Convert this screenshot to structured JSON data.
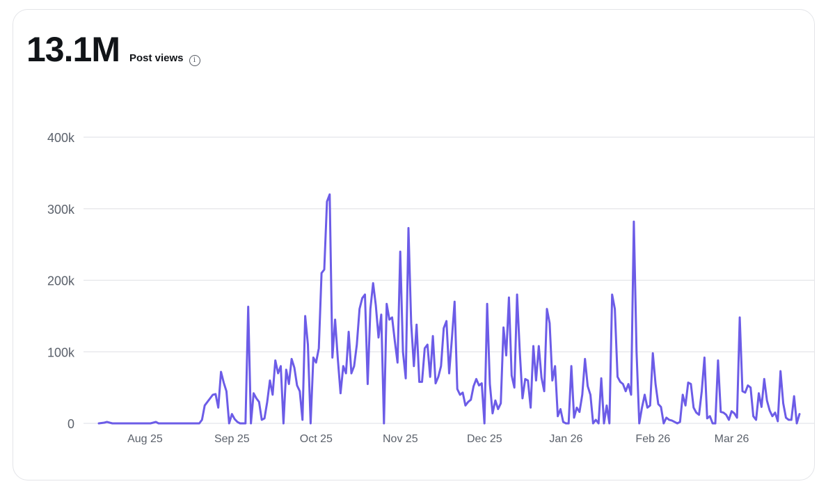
{
  "header": {
    "total": "13.1M",
    "metric_label": "Post views",
    "info_glyph": "i"
  },
  "chart_data": {
    "type": "line",
    "title": "Post views",
    "xlabel": "",
    "ylabel": "",
    "ylim": [
      0,
      400000
    ],
    "yticks": [
      {
        "value": 0,
        "label": "0"
      },
      {
        "value": 100000,
        "label": "100k"
      },
      {
        "value": 200000,
        "label": "200k"
      },
      {
        "value": 300000,
        "label": "300k"
      },
      {
        "value": 400000,
        "label": "400k"
      }
    ],
    "xlim": [
      0,
      250
    ],
    "xticks": [
      {
        "value": 16,
        "label": "Aug 25"
      },
      {
        "value": 48,
        "label": "Sep 25"
      },
      {
        "value": 79,
        "label": "Oct 25"
      },
      {
        "value": 110,
        "label": "Nov 25"
      },
      {
        "value": 141,
        "label": "Dec 25"
      },
      {
        "value": 171,
        "label": "Jan 26"
      },
      {
        "value": 203,
        "label": "Feb 26"
      },
      {
        "value": 232,
        "label": "Mar 26"
      }
    ],
    "grid": true,
    "line_color": "#6c5ce7",
    "series": [
      {
        "name": "Post views",
        "points": [
          [
            0,
            0
          ],
          [
            2,
            1000
          ],
          [
            3,
            2000
          ],
          [
            4,
            1000
          ],
          [
            5,
            0
          ],
          [
            8,
            0
          ],
          [
            11,
            0
          ],
          [
            14,
            0
          ],
          [
            17,
            0
          ],
          [
            19,
            0
          ],
          [
            20,
            1000
          ],
          [
            21,
            2000
          ],
          [
            22,
            0
          ],
          [
            25,
            0
          ],
          [
            28,
            0
          ],
          [
            31,
            0
          ],
          [
            34,
            0
          ],
          [
            37,
            0
          ],
          [
            38,
            5000
          ],
          [
            39,
            25000
          ],
          [
            41,
            35000
          ],
          [
            42,
            40000
          ],
          [
            43,
            41000
          ],
          [
            44,
            22000
          ],
          [
            45,
            72000
          ],
          [
            46,
            57000
          ],
          [
            47,
            45000
          ],
          [
            48,
            0
          ],
          [
            49,
            13000
          ],
          [
            50,
            6000
          ],
          [
            51,
            2000
          ],
          [
            52,
            0
          ],
          [
            53,
            0
          ],
          [
            54,
            0
          ],
          [
            55,
            163000
          ],
          [
            56,
            0
          ],
          [
            57,
            42000
          ],
          [
            58,
            35000
          ],
          [
            59,
            30000
          ],
          [
            60,
            5000
          ],
          [
            61,
            7000
          ],
          [
            62,
            30000
          ],
          [
            63,
            60000
          ],
          [
            64,
            40000
          ],
          [
            65,
            88000
          ],
          [
            66,
            70000
          ],
          [
            67,
            80000
          ],
          [
            68,
            0
          ],
          [
            69,
            75000
          ],
          [
            70,
            55000
          ],
          [
            71,
            90000
          ],
          [
            72,
            78000
          ],
          [
            73,
            53000
          ],
          [
            74,
            45000
          ],
          [
            75,
            5000
          ],
          [
            76,
            150000
          ],
          [
            77,
            110000
          ],
          [
            78,
            0
          ],
          [
            79,
            92000
          ],
          [
            80,
            85000
          ],
          [
            81,
            105000
          ],
          [
            82,
            210000
          ],
          [
            83,
            215000
          ],
          [
            84,
            310000
          ],
          [
            85,
            320000
          ],
          [
            86,
            92000
          ],
          [
            87,
            145000
          ],
          [
            88,
            90000
          ],
          [
            89,
            42000
          ],
          [
            90,
            80000
          ],
          [
            91,
            70000
          ],
          [
            92,
            128000
          ],
          [
            93,
            70000
          ],
          [
            94,
            80000
          ],
          [
            95,
            110000
          ],
          [
            96,
            160000
          ],
          [
            97,
            175000
          ],
          [
            98,
            180000
          ],
          [
            99,
            55000
          ],
          [
            100,
            160000
          ],
          [
            101,
            196000
          ],
          [
            102,
            165000
          ],
          [
            103,
            120000
          ],
          [
            104,
            152000
          ],
          [
            105,
            0
          ],
          [
            106,
            167000
          ],
          [
            107,
            145000
          ],
          [
            108,
            148000
          ],
          [
            109,
            115000
          ],
          [
            110,
            85000
          ],
          [
            111,
            240000
          ],
          [
            112,
            100000
          ],
          [
            113,
            63000
          ],
          [
            114,
            273000
          ],
          [
            115,
            140000
          ],
          [
            116,
            80000
          ],
          [
            117,
            138000
          ],
          [
            118,
            58000
          ],
          [
            119,
            58000
          ],
          [
            120,
            105000
          ],
          [
            121,
            110000
          ],
          [
            122,
            65000
          ],
          [
            123,
            122000
          ],
          [
            124,
            56000
          ],
          [
            125,
            65000
          ],
          [
            126,
            80000
          ],
          [
            127,
            133000
          ],
          [
            128,
            143000
          ],
          [
            129,
            70000
          ],
          [
            130,
            118000
          ],
          [
            131,
            170000
          ],
          [
            132,
            48000
          ],
          [
            133,
            40000
          ],
          [
            134,
            43000
          ],
          [
            135,
            25000
          ],
          [
            136,
            30000
          ],
          [
            137,
            33000
          ],
          [
            138,
            52000
          ],
          [
            139,
            62000
          ],
          [
            140,
            53000
          ],
          [
            141,
            56000
          ],
          [
            142,
            0
          ],
          [
            143,
            167000
          ],
          [
            144,
            55000
          ],
          [
            145,
            14000
          ],
          [
            146,
            32000
          ],
          [
            147,
            20000
          ],
          [
            148,
            28000
          ],
          [
            149,
            134000
          ],
          [
            150,
            95000
          ],
          [
            151,
            176000
          ],
          [
            152,
            67000
          ],
          [
            153,
            50000
          ],
          [
            154,
            180000
          ],
          [
            155,
            100000
          ],
          [
            156,
            35000
          ],
          [
            157,
            62000
          ],
          [
            158,
            60000
          ],
          [
            159,
            22000
          ],
          [
            160,
            108000
          ],
          [
            161,
            60000
          ],
          [
            162,
            108000
          ],
          [
            163,
            64000
          ],
          [
            164,
            45000
          ],
          [
            165,
            160000
          ],
          [
            166,
            140000
          ],
          [
            167,
            60000
          ],
          [
            168,
            80000
          ],
          [
            169,
            10000
          ],
          [
            170,
            20000
          ],
          [
            171,
            2000
          ],
          [
            172,
            0
          ],
          [
            173,
            0
          ],
          [
            174,
            80000
          ],
          [
            175,
            8000
          ],
          [
            176,
            22000
          ],
          [
            177,
            16000
          ],
          [
            178,
            40000
          ],
          [
            179,
            90000
          ],
          [
            180,
            52000
          ],
          [
            181,
            40000
          ],
          [
            182,
            0
          ],
          [
            183,
            5000
          ],
          [
            184,
            0
          ],
          [
            185,
            63000
          ],
          [
            186,
            0
          ],
          [
            187,
            25000
          ],
          [
            188,
            0
          ],
          [
            189,
            180000
          ],
          [
            190,
            160000
          ],
          [
            191,
            65000
          ],
          [
            192,
            58000
          ],
          [
            193,
            55000
          ],
          [
            194,
            45000
          ],
          [
            195,
            55000
          ],
          [
            196,
            40000
          ],
          [
            197,
            282000
          ],
          [
            198,
            100000
          ],
          [
            199,
            0
          ],
          [
            200,
            22000
          ],
          [
            201,
            40000
          ],
          [
            202,
            22000
          ],
          [
            203,
            25000
          ],
          [
            204,
            98000
          ],
          [
            205,
            55000
          ],
          [
            206,
            27000
          ],
          [
            207,
            23000
          ],
          [
            208,
            0
          ],
          [
            209,
            8000
          ],
          [
            210,
            5000
          ],
          [
            211,
            4000
          ],
          [
            212,
            2000
          ],
          [
            213,
            0
          ],
          [
            214,
            2000
          ],
          [
            215,
            40000
          ],
          [
            216,
            25000
          ],
          [
            217,
            57000
          ],
          [
            218,
            55000
          ],
          [
            219,
            22000
          ],
          [
            220,
            15000
          ],
          [
            221,
            12000
          ],
          [
            222,
            45000
          ],
          [
            223,
            92000
          ],
          [
            224,
            7000
          ],
          [
            225,
            10000
          ],
          [
            226,
            0
          ],
          [
            227,
            0
          ],
          [
            228,
            88000
          ],
          [
            229,
            16000
          ],
          [
            230,
            15000
          ],
          [
            231,
            12000
          ],
          [
            232,
            5000
          ],
          [
            233,
            17000
          ],
          [
            234,
            14000
          ],
          [
            235,
            8000
          ],
          [
            236,
            148000
          ],
          [
            237,
            45000
          ],
          [
            238,
            43000
          ],
          [
            239,
            53000
          ],
          [
            240,
            50000
          ],
          [
            241,
            10000
          ],
          [
            242,
            5000
          ],
          [
            243,
            42000
          ],
          [
            244,
            23000
          ],
          [
            245,
            62000
          ],
          [
            246,
            32000
          ],
          [
            247,
            18000
          ],
          [
            248,
            10000
          ],
          [
            249,
            15000
          ],
          [
            250,
            3000
          ],
          [
            251,
            73000
          ],
          [
            252,
            28000
          ],
          [
            253,
            8000
          ],
          [
            254,
            5000
          ],
          [
            255,
            5000
          ],
          [
            256,
            38000
          ],
          [
            257,
            0
          ],
          [
            258,
            13000
          ]
        ]
      }
    ]
  }
}
